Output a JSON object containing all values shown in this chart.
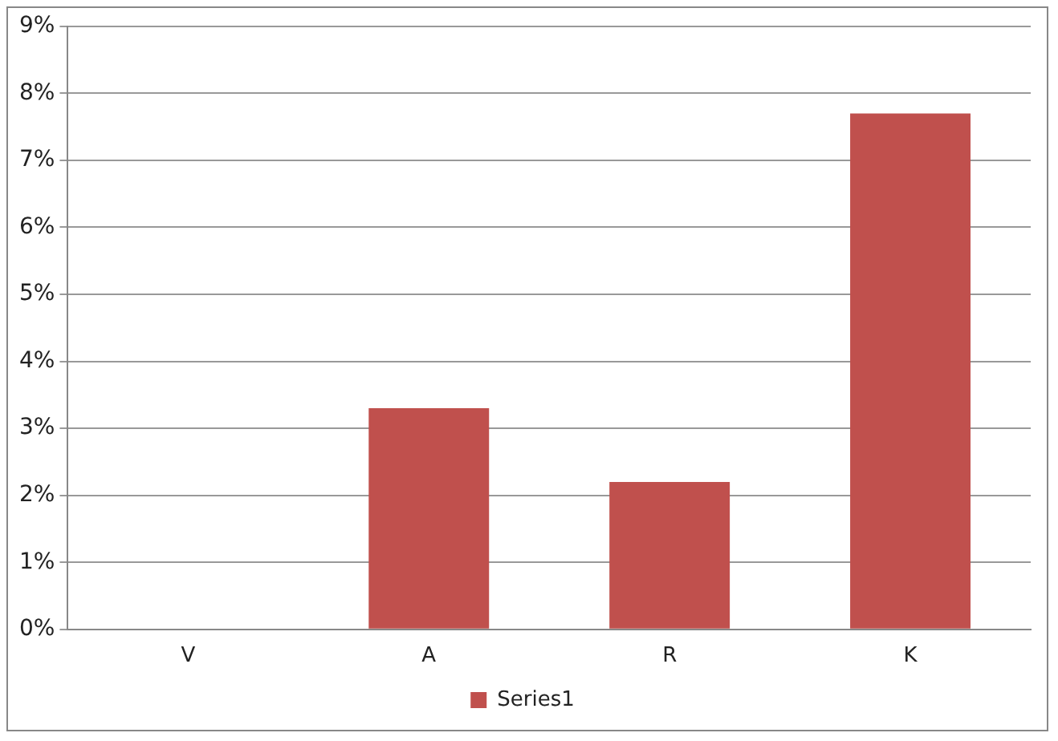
{
  "chart_data": {
    "type": "bar",
    "categories": [
      "V",
      "A",
      "R",
      "K"
    ],
    "series": [
      {
        "name": "Series1",
        "color": "#c0504d",
        "values": [
          0,
          3.3,
          2.2,
          7.7
        ]
      }
    ],
    "ylim": [
      0,
      9
    ],
    "yticks": [
      {
        "value": 0,
        "label": "0%"
      },
      {
        "value": 1,
        "label": "1%"
      },
      {
        "value": 2,
        "label": "2%"
      },
      {
        "value": 3,
        "label": "3%"
      },
      {
        "value": 4,
        "label": "4%"
      },
      {
        "value": 5,
        "label": "5%"
      },
      {
        "value": 6,
        "label": "6%"
      },
      {
        "value": 7,
        "label": "7%"
      },
      {
        "value": 8,
        "label": "8%"
      },
      {
        "value": 9,
        "label": "9%"
      }
    ],
    "grid": "y",
    "legend": "bottom"
  }
}
